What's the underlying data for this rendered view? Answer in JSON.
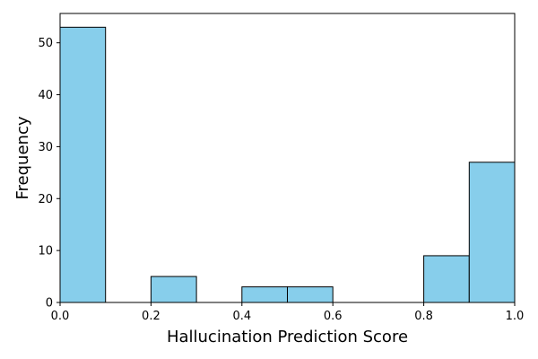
{
  "chart_data": {
    "type": "bar",
    "histogram": true,
    "title": "",
    "xlabel": "Hallucination Prediction Score",
    "ylabel": "Frequency",
    "xlim": [
      0,
      1.0
    ],
    "ylim": [
      0,
      55.65
    ],
    "xticks": [
      "0.0",
      "0.2",
      "0.4",
      "0.6",
      "0.8",
      "1.0"
    ],
    "yticks": [
      "0",
      "10",
      "20",
      "30",
      "40",
      "50"
    ],
    "bins": [
      {
        "x0": 0.0,
        "x1": 0.1,
        "value": 53
      },
      {
        "x0": 0.1,
        "x1": 0.2,
        "value": 0
      },
      {
        "x0": 0.2,
        "x1": 0.3,
        "value": 5
      },
      {
        "x0": 0.3,
        "x1": 0.4,
        "value": 0
      },
      {
        "x0": 0.4,
        "x1": 0.5,
        "value": 3
      },
      {
        "x0": 0.5,
        "x1": 0.6,
        "value": 3
      },
      {
        "x0": 0.6,
        "x1": 0.7,
        "value": 0
      },
      {
        "x0": 0.7,
        "x1": 0.8,
        "value": 0
      },
      {
        "x0": 0.8,
        "x1": 0.9,
        "value": 9
      },
      {
        "x0": 0.9,
        "x1": 1.0,
        "value": 27
      }
    ],
    "bar_color": "#87CEEB",
    "edge_color": "#000000",
    "grid": false,
    "legend": "none"
  }
}
